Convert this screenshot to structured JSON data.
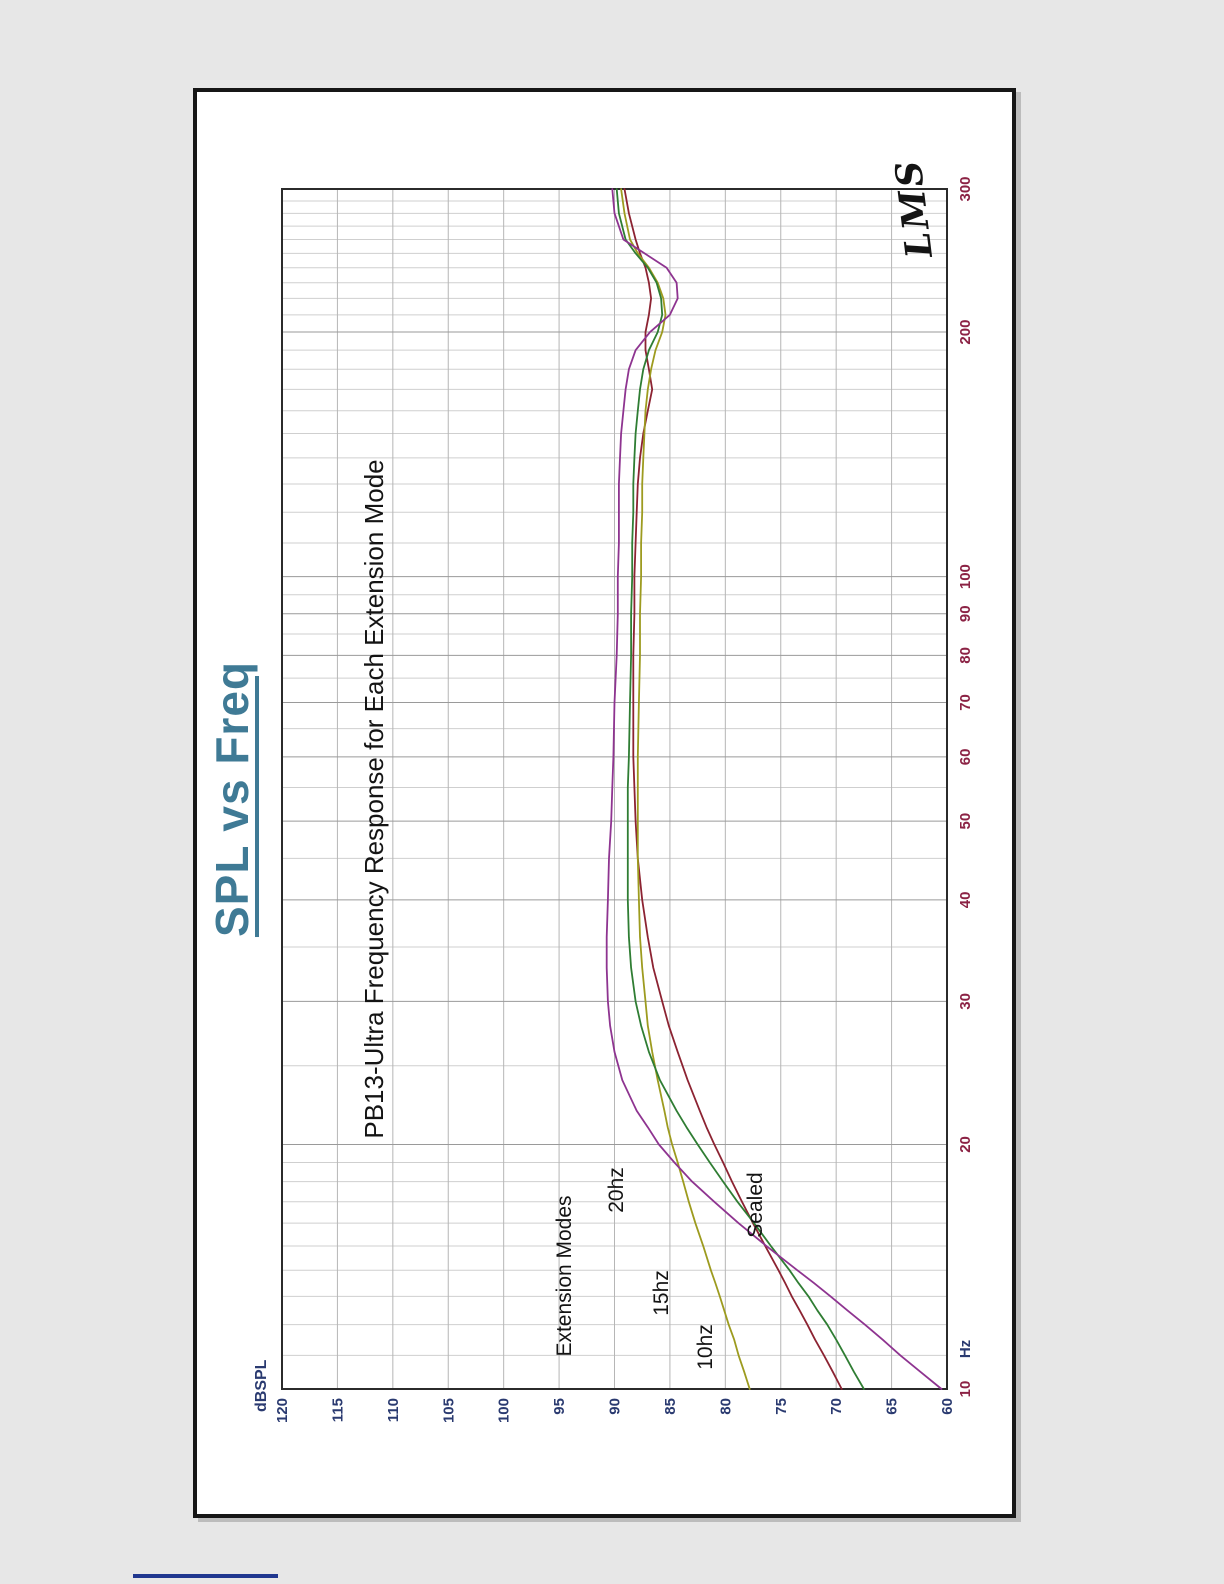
{
  "chart": {
    "title": "SPL vs Freq",
    "subtitle": "PB13-Ultra Frequency Response for Each Extension Mode",
    "y_unit_label": "dBSPL",
    "x_unit_label": "Hz",
    "watermark": "LMS",
    "labels": {
      "legend_title": "Extension Modes",
      "mode_20": "20hz",
      "mode_15": "15hz",
      "mode_10": "10hz",
      "sealed": "Sealed"
    },
    "colors": {
      "title": "#3f7a95",
      "freq_ticks": "#8b2244",
      "db_ticks": "#2a3a70",
      "grid_major": "#9a9a9a",
      "grid_minor": "#cfcfcf",
      "plot_border": "#2b2b2b"
    }
  },
  "chart_data": {
    "type": "line",
    "title": "PB13-Ultra Frequency Response for Each Extension Mode",
    "xlabel": "Hz",
    "ylabel": "dBSPL",
    "x_scale": "log",
    "xlim": [
      10,
      300
    ],
    "ylim": [
      60,
      120
    ],
    "grid": true,
    "legend_position": "in-plot labels near low-frequency rolloff",
    "x_ticks_major": [
      10,
      20,
      30,
      40,
      50,
      60,
      70,
      80,
      90,
      100,
      200,
      300
    ],
    "x_ticks_minor": [
      11,
      12,
      13,
      14,
      15,
      16,
      17,
      18,
      19,
      25,
      35,
      45,
      55,
      65,
      75,
      85,
      95,
      110,
      120,
      130,
      140,
      150,
      160,
      170,
      180,
      190,
      210,
      220,
      230,
      240,
      250,
      260,
      270,
      280,
      290
    ],
    "y_ticks": [
      120,
      115,
      110,
      105,
      100,
      95,
      90,
      85,
      80,
      75,
      70,
      65,
      60
    ],
    "x": [
      10,
      10.5,
      11,
      11.5,
      12,
      12.5,
      13,
      13.5,
      14,
      15,
      16,
      17,
      18,
      19,
      20,
      21,
      22,
      24,
      26,
      28,
      30,
      33,
      36,
      40,
      45,
      50,
      55,
      60,
      70,
      80,
      90,
      100,
      110,
      120,
      130,
      140,
      150,
      160,
      170,
      180,
      190,
      200,
      210,
      220,
      230,
      240,
      250,
      260,
      280,
      300
    ],
    "series": [
      {
        "name": "Sealed",
        "color": "#8c2332",
        "values": [
          69.5,
          70.3,
          71.1,
          71.9,
          72.6,
          73.3,
          74.0,
          74.6,
          75.2,
          76.4,
          77.5,
          78.5,
          79.4,
          80.2,
          81.0,
          81.7,
          82.3,
          83.4,
          84.3,
          85.1,
          85.7,
          86.5,
          87.0,
          87.5,
          87.9,
          88.1,
          88.2,
          88.3,
          88.3,
          88.3,
          88.2,
          88.2,
          88.1,
          88.0,
          87.9,
          87.7,
          87.4,
          87.0,
          86.6,
          86.9,
          87.2,
          87.2,
          86.9,
          86.7,
          86.9,
          87.2,
          87.7,
          88.1,
          88.7,
          89.1
        ]
      },
      {
        "name": "10hz",
        "color": "#9d9b1f",
        "values": [
          77.8,
          78.3,
          78.8,
          79.2,
          79.7,
          80.1,
          80.5,
          80.9,
          81.3,
          82.0,
          82.7,
          83.3,
          83.8,
          84.3,
          84.8,
          85.2,
          85.5,
          86.1,
          86.6,
          87.0,
          87.2,
          87.5,
          87.7,
          87.8,
          87.9,
          87.9,
          87.9,
          87.9,
          87.8,
          87.7,
          87.7,
          87.6,
          87.6,
          87.5,
          87.5,
          87.4,
          87.3,
          87.2,
          87.0,
          86.7,
          86.3,
          85.7,
          85.4,
          85.6,
          86.1,
          86.9,
          87.9,
          88.6,
          89.1,
          89.4
        ]
      },
      {
        "name": "15hz",
        "color": "#2f7d33",
        "values": [
          67.5,
          68.4,
          69.2,
          70.0,
          70.8,
          71.7,
          72.5,
          73.4,
          74.2,
          75.9,
          77.4,
          78.9,
          80.2,
          81.4,
          82.5,
          83.5,
          84.4,
          85.9,
          86.9,
          87.6,
          88.1,
          88.5,
          88.7,
          88.8,
          88.8,
          88.8,
          88.8,
          88.7,
          88.6,
          88.5,
          88.5,
          88.4,
          88.4,
          88.3,
          88.3,
          88.2,
          88.1,
          87.9,
          87.7,
          87.4,
          86.9,
          86.1,
          85.7,
          85.8,
          86.2,
          87.0,
          88.1,
          89.0,
          89.6,
          89.8
        ]
      },
      {
        "name": "20hz",
        "color": "#8e3490",
        "values": [
          60.5,
          62.4,
          64.2,
          65.8,
          67.4,
          69.0,
          70.5,
          72.0,
          73.5,
          76.3,
          78.8,
          81.0,
          83.0,
          84.6,
          86.0,
          87.0,
          88.0,
          89.3,
          90.0,
          90.4,
          90.6,
          90.7,
          90.7,
          90.6,
          90.5,
          90.3,
          90.2,
          90.1,
          90.0,
          89.8,
          89.7,
          89.7,
          89.6,
          89.6,
          89.6,
          89.5,
          89.4,
          89.2,
          89.0,
          88.7,
          88.1,
          86.8,
          85.0,
          84.3,
          84.4,
          85.3,
          87.3,
          89.2,
          90.0,
          90.2
        ]
      }
    ]
  }
}
